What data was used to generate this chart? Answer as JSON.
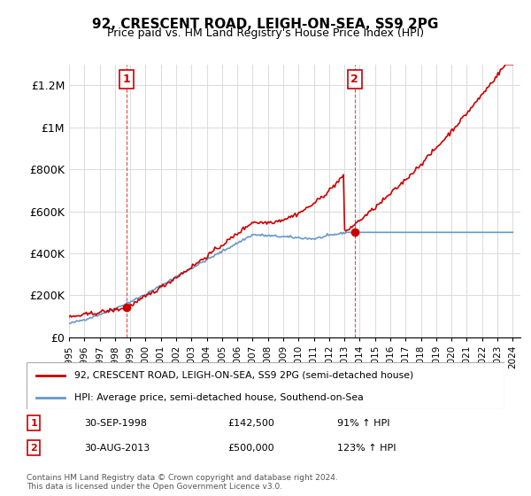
{
  "title": "92, CRESCENT ROAD, LEIGH-ON-SEA, SS9 2PG",
  "subtitle": "Price paid vs. HM Land Registry's House Price Index (HPI)",
  "ylim": [
    0,
    1300000
  ],
  "yticks": [
    0,
    200000,
    400000,
    600000,
    800000,
    1000000,
    1200000
  ],
  "ytick_labels": [
    "£0",
    "£200K",
    "£400K",
    "£600K",
    "£800K",
    "£1M",
    "£1.2M"
  ],
  "sale1_date": "30-SEP-1998",
  "sale1_price": 142500,
  "sale1_label": "1",
  "sale1_pct": "91% ↑ HPI",
  "sale2_date": "30-AUG-2013",
  "sale2_price": 500000,
  "sale2_label": "2",
  "sale2_pct": "123% ↑ HPI",
  "legend_line1": "92, CRESCENT ROAD, LEIGH-ON-SEA, SS9 2PG (semi-detached house)",
  "legend_line2": "HPI: Average price, semi-detached house, Southend-on-Sea",
  "footer": "Contains HM Land Registry data © Crown copyright and database right 2024.\nThis data is licensed under the Open Government Licence v3.0.",
  "line_color": "#cc0000",
  "hpi_color": "#6699cc",
  "marker_color": "#cc0000",
  "grid_color": "#dddddd",
  "bg_color": "#ffffff",
  "annotation_box_color": "#cc0000"
}
